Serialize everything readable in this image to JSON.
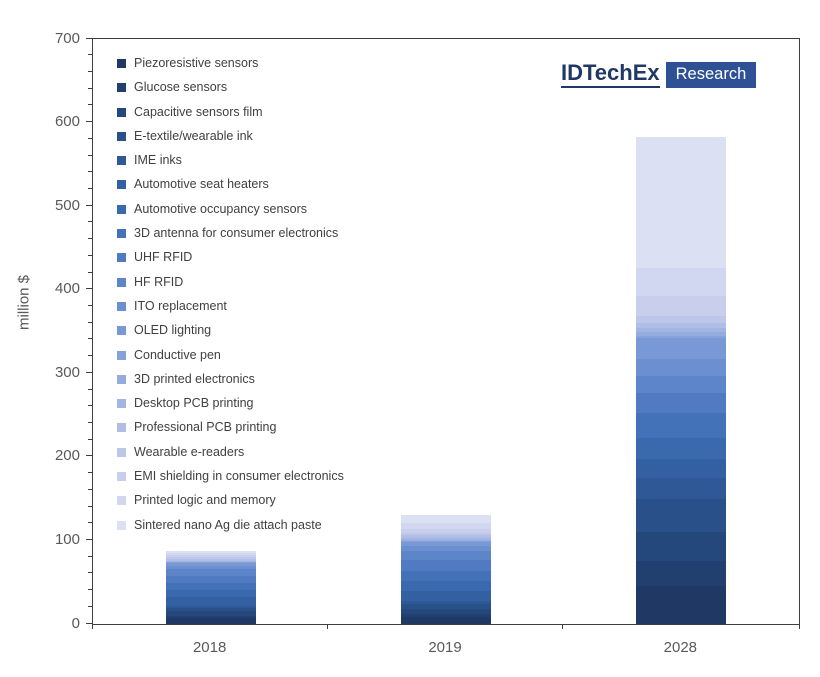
{
  "chart_data": {
    "type": "bar",
    "stacked": true,
    "title": "",
    "xlabel": "",
    "ylabel": "million $",
    "categories": [
      "2018",
      "2019",
      "2028"
    ],
    "ylim": [
      0,
      700
    ],
    "y_major_step": 100,
    "y_minor_step": 20,
    "grid": false,
    "legend_position": "upper-left",
    "series": [
      {
        "name": "Piezoresistive sensors",
        "color": "#1F3864",
        "values": [
          7,
          8,
          45
        ]
      },
      {
        "name": "Glucose sensors",
        "color": "#21406F",
        "values": [
          3,
          4,
          30
        ]
      },
      {
        "name": "Capacitive sensors film",
        "color": "#25487C",
        "values": [
          5,
          6,
          35
        ]
      },
      {
        "name": "E-textile/wearable ink",
        "color": "#295089",
        "values": [
          4,
          6,
          40
        ]
      },
      {
        "name": "IME inks",
        "color": "#2E5896",
        "values": [
          3,
          4,
          25
        ]
      },
      {
        "name": "Automotive seat heaters",
        "color": "#3360A3",
        "values": [
          10,
          12,
          22
        ]
      },
      {
        "name": "Automotive occupancy sensors",
        "color": "#3A69AE",
        "values": [
          9,
          12,
          25
        ]
      },
      {
        "name": "3D antenna for consumer electronics",
        "color": "#4472B9",
        "values": [
          8,
          12,
          30
        ]
      },
      {
        "name": "UHF RFID",
        "color": "#507BC2",
        "values": [
          9,
          13,
          25
        ]
      },
      {
        "name": "HF RFID",
        "color": "#5D85CA",
        "values": [
          8,
          10,
          20
        ]
      },
      {
        "name": "ITO replacement",
        "color": "#6B8FD0",
        "values": [
          4,
          6,
          20
        ]
      },
      {
        "name": "OLED lighting",
        "color": "#7998D6",
        "values": [
          3,
          5,
          25
        ]
      },
      {
        "name": "Conductive pen",
        "color": "#87A2DA",
        "values": [
          1,
          1,
          3
        ]
      },
      {
        "name": "3D printed electronics",
        "color": "#95ACDE",
        "values": [
          1,
          2,
          5
        ]
      },
      {
        "name": "Desktop PCB printing",
        "color": "#A3B5E2",
        "values": [
          1,
          2,
          4
        ]
      },
      {
        "name": "Professional PCB printing",
        "color": "#B0BEE6",
        "values": [
          2,
          3,
          6
        ]
      },
      {
        "name": "Wearable e-readers",
        "color": "#BCC7EA",
        "values": [
          2,
          3,
          8
        ]
      },
      {
        "name": "EMI shielding in consumer electronics",
        "color": "#C7CFED",
        "values": [
          3,
          5,
          25
        ]
      },
      {
        "name": "Printed logic and memory",
        "color": "#D1D7F0",
        "values": [
          2,
          7,
          33
        ]
      },
      {
        "name": "Sintered nano Ag die attach paste",
        "color": "#DBE0F3",
        "values": [
          2,
          9,
          157
        ]
      }
    ]
  },
  "logo": {
    "brand": "IDTechEx",
    "sub": "Research",
    "brand_color": "#1F3864",
    "badge_color": "#2E5195"
  },
  "colors": {
    "axis_text": "#595959",
    "legend_text": "#404040",
    "plot_border": "#3F3F3F"
  }
}
